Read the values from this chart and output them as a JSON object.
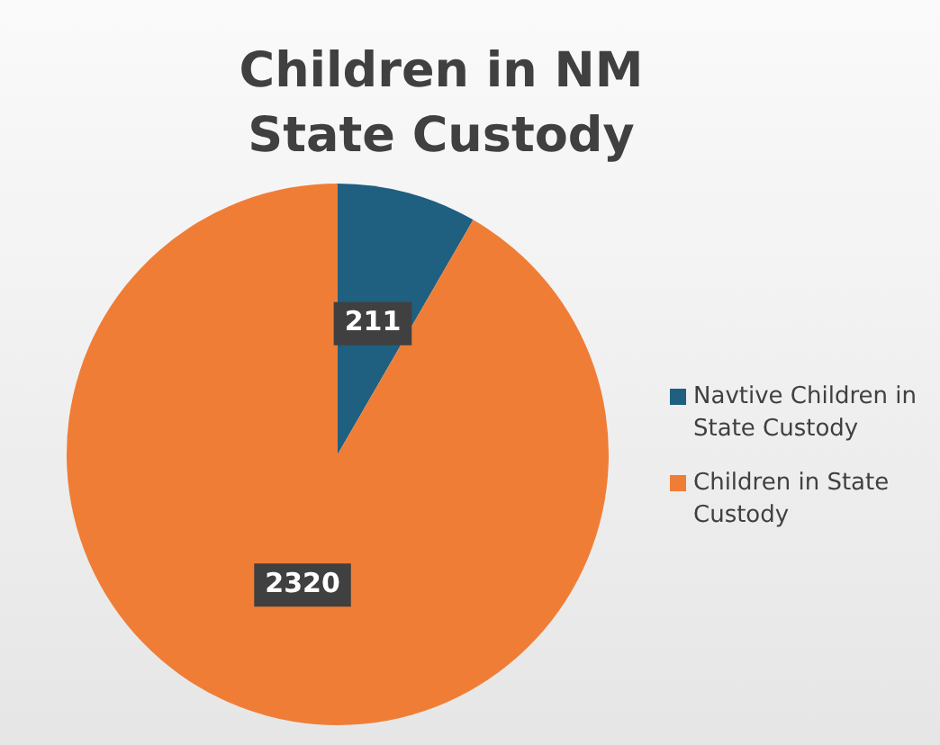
{
  "chart_data": {
    "type": "pie",
    "title": "Children in NM State Custody",
    "categories": [
      "Navtive Children in State Custody",
      "Children in State Custody"
    ],
    "values": [
      211,
      2320
    ],
    "colors": [
      "#1f5f7f",
      "#f07d36"
    ],
    "data_labels": true,
    "legend": "right"
  }
}
